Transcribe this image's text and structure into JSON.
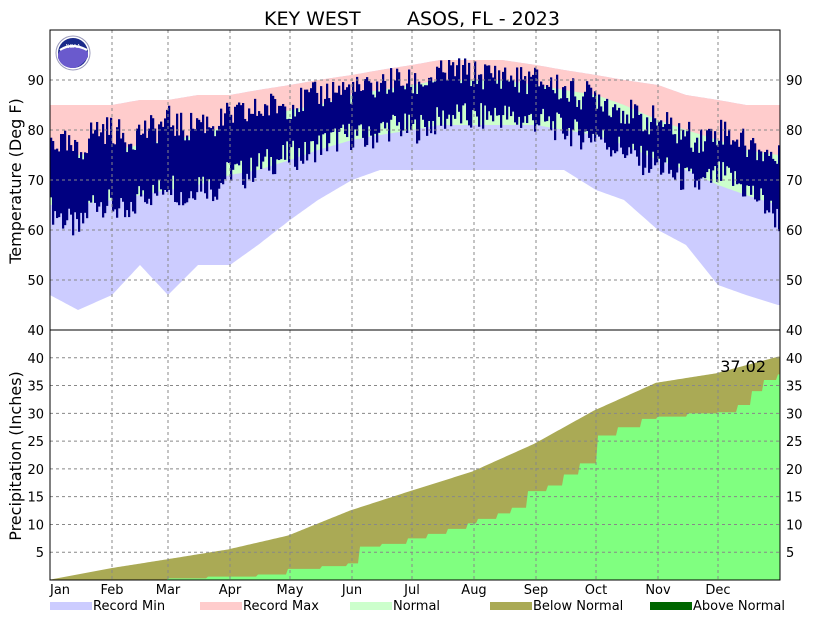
{
  "chart_data": {
    "type": "bar",
    "title_station": "KEY WEST",
    "title_rest": "ASOS, FL - 2023",
    "colors": {
      "record_min": "#ccccff",
      "record_max": "#ffcccc",
      "normal": "#ccffcc",
      "observed": "#000080",
      "below_normal": "#aaaa55",
      "above_normal": "#006600",
      "observed_precip": "#80ff80"
    },
    "months": [
      "Jan",
      "Feb",
      "Mar",
      "Apr",
      "May",
      "Jun",
      "Jul",
      "Aug",
      "Sep",
      "Oct",
      "Nov",
      "Dec"
    ],
    "temperature": {
      "ylabel": "Temperature (Deg F)",
      "ylim": [
        40,
        100
      ],
      "ticks": [
        40,
        50,
        60,
        70,
        80,
        90
      ],
      "record_min_anchors": [
        [
          1,
          47
        ],
        [
          15,
          44
        ],
        [
          32,
          47
        ],
        [
          46,
          53
        ],
        [
          60,
          47
        ],
        [
          75,
          53
        ],
        [
          91,
          53
        ],
        [
          105,
          57
        ],
        [
          121,
          62
        ],
        [
          135,
          66
        ],
        [
          152,
          70
        ],
        [
          166,
          72
        ],
        [
          182,
          72
        ],
        [
          196,
          72
        ],
        [
          213,
          72
        ],
        [
          227,
          72
        ],
        [
          244,
          72
        ],
        [
          258,
          72
        ],
        [
          274,
          68
        ],
        [
          288,
          66
        ],
        [
          305,
          60
        ],
        [
          319,
          57
        ],
        [
          335,
          49
        ],
        [
          349,
          47
        ],
        [
          365,
          45
        ]
      ],
      "record_max_anchors": [
        [
          1,
          85
        ],
        [
          15,
          85
        ],
        [
          32,
          85
        ],
        [
          46,
          86
        ],
        [
          60,
          86
        ],
        [
          75,
          87
        ],
        [
          91,
          87
        ],
        [
          105,
          88
        ],
        [
          121,
          89
        ],
        [
          135,
          90
        ],
        [
          152,
          91
        ],
        [
          166,
          92
        ],
        [
          182,
          93
        ],
        [
          196,
          94
        ],
        [
          213,
          94
        ],
        [
          227,
          94
        ],
        [
          244,
          93
        ],
        [
          258,
          92
        ],
        [
          274,
          91
        ],
        [
          288,
          90
        ],
        [
          305,
          89
        ],
        [
          319,
          87
        ],
        [
          335,
          86
        ],
        [
          349,
          85
        ],
        [
          365,
          85
        ]
      ],
      "normal_low_anchors": [
        [
          1,
          65
        ],
        [
          15,
          65
        ],
        [
          32,
          66
        ],
        [
          46,
          67
        ],
        [
          60,
          68
        ],
        [
          75,
          69
        ],
        [
          91,
          71
        ],
        [
          105,
          72
        ],
        [
          121,
          74
        ],
        [
          135,
          76
        ],
        [
          152,
          78
        ],
        [
          166,
          79
        ],
        [
          182,
          80
        ],
        [
          196,
          81
        ],
        [
          213,
          81
        ],
        [
          227,
          81
        ],
        [
          244,
          81
        ],
        [
          258,
          80
        ],
        [
          274,
          79
        ],
        [
          288,
          77
        ],
        [
          305,
          74
        ],
        [
          319,
          72
        ],
        [
          335,
          69
        ],
        [
          349,
          67
        ],
        [
          365,
          65
        ]
      ],
      "normal_high_anchors": [
        [
          1,
          75
        ],
        [
          15,
          75
        ],
        [
          32,
          76
        ],
        [
          46,
          77
        ],
        [
          60,
          78
        ],
        [
          75,
          79
        ],
        [
          91,
          81
        ],
        [
          105,
          82
        ],
        [
          121,
          84
        ],
        [
          135,
          85
        ],
        [
          152,
          87
        ],
        [
          166,
          88
        ],
        [
          182,
          89
        ],
        [
          196,
          90
        ],
        [
          213,
          90
        ],
        [
          227,
          90
        ],
        [
          244,
          89
        ],
        [
          258,
          88
        ],
        [
          274,
          87
        ],
        [
          288,
          85
        ],
        [
          305,
          82
        ],
        [
          319,
          80
        ],
        [
          335,
          78
        ],
        [
          349,
          76
        ],
        [
          365,
          75
        ]
      ],
      "observed_low_anchors": [
        [
          1,
          64
        ],
        [
          8,
          62
        ],
        [
          15,
          60
        ],
        [
          22,
          66
        ],
        [
          32,
          65
        ],
        [
          40,
          62
        ],
        [
          46,
          68
        ],
        [
          53,
          67
        ],
        [
          60,
          70
        ],
        [
          68,
          66
        ],
        [
          75,
          70
        ],
        [
          83,
          68
        ],
        [
          91,
          72
        ],
        [
          98,
          71
        ],
        [
          105,
          73
        ],
        [
          113,
          74
        ],
        [
          121,
          75
        ],
        [
          128,
          75
        ],
        [
          135,
          77
        ],
        [
          142,
          78
        ],
        [
          152,
          79
        ],
        [
          159,
          78
        ],
        [
          166,
          80
        ],
        [
          173,
          81
        ],
        [
          182,
          80
        ],
        [
          189,
          81
        ],
        [
          196,
          82
        ],
        [
          203,
          83
        ],
        [
          213,
          82
        ],
        [
          220,
          83
        ],
        [
          227,
          83
        ],
        [
          234,
          82
        ],
        [
          244,
          82
        ],
        [
          251,
          81
        ],
        [
          258,
          80
        ],
        [
          265,
          79
        ],
        [
          274,
          79
        ],
        [
          281,
          77
        ],
        [
          288,
          76
        ],
        [
          295,
          74
        ],
        [
          305,
          73
        ],
        [
          312,
          71
        ],
        [
          319,
          70
        ],
        [
          326,
          69
        ],
        [
          335,
          71
        ],
        [
          342,
          70
        ],
        [
          349,
          68
        ],
        [
          356,
          66
        ],
        [
          365,
          62
        ]
      ],
      "observed_high_anchors": [
        [
          1,
          78
        ],
        [
          8,
          77
        ],
        [
          15,
          75
        ],
        [
          22,
          80
        ],
        [
          32,
          80
        ],
        [
          40,
          78
        ],
        [
          46,
          80
        ],
        [
          53,
          80
        ],
        [
          60,
          82
        ],
        [
          68,
          80
        ],
        [
          75,
          82
        ],
        [
          83,
          81
        ],
        [
          91,
          83
        ],
        [
          98,
          83
        ],
        [
          105,
          84
        ],
        [
          113,
          85
        ],
        [
          121,
          85
        ],
        [
          128,
          86
        ],
        [
          135,
          87
        ],
        [
          142,
          88
        ],
        [
          152,
          88
        ],
        [
          159,
          88
        ],
        [
          166,
          89
        ],
        [
          173,
          90
        ],
        [
          182,
          89
        ],
        [
          189,
          90
        ],
        [
          196,
          91
        ],
        [
          203,
          92
        ],
        [
          213,
          91
        ],
        [
          220,
          91
        ],
        [
          227,
          91
        ],
        [
          234,
          90
        ],
        [
          244,
          90
        ],
        [
          251,
          89
        ],
        [
          258,
          88
        ],
        [
          265,
          87
        ],
        [
          274,
          87
        ],
        [
          281,
          85
        ],
        [
          288,
          84
        ],
        [
          295,
          82
        ],
        [
          305,
          82
        ],
        [
          312,
          80
        ],
        [
          319,
          79
        ],
        [
          326,
          78
        ],
        [
          335,
          80
        ],
        [
          342,
          79
        ],
        [
          349,
          77
        ],
        [
          356,
          76
        ],
        [
          365,
          74
        ]
      ]
    },
    "precipitation": {
      "ylabel": "Precipitation (Inches)",
      "ylim": [
        0,
        45
      ],
      "ticks": [
        5,
        10,
        15,
        20,
        25,
        30,
        35,
        40
      ],
      "normal_cumulative_anchors": [
        [
          0,
          0
        ],
        [
          31,
          2.1
        ],
        [
          59,
          3.7
        ],
        [
          90,
          5.5
        ],
        [
          120,
          8.0
        ],
        [
          151,
          12.5
        ],
        [
          181,
          16.0
        ],
        [
          212,
          19.5
        ],
        [
          243,
          24.5
        ],
        [
          273,
          30.5
        ],
        [
          304,
          35.5
        ],
        [
          334,
          37.2
        ],
        [
          365,
          40.2
        ]
      ],
      "observed_cumulative_steps": [
        [
          0,
          0
        ],
        [
          60,
          0.3
        ],
        [
          80,
          0.6
        ],
        [
          105,
          1.0
        ],
        [
          120,
          2.0
        ],
        [
          137,
          2.5
        ],
        [
          150,
          3.0
        ],
        [
          156,
          6.0
        ],
        [
          167,
          6.5
        ],
        [
          175,
          6.5
        ],
        [
          180,
          7.5
        ],
        [
          190,
          8.3
        ],
        [
          200,
          9.2
        ],
        [
          210,
          10.2
        ],
        [
          215,
          11.0
        ],
        [
          225,
          12.0
        ],
        [
          232,
          13.0
        ],
        [
          240,
          16.0
        ],
        [
          250,
          17.0
        ],
        [
          258,
          19.0
        ],
        [
          266,
          21.0
        ],
        [
          275,
          26.0
        ],
        [
          285,
          27.5
        ],
        [
          297,
          29.0
        ],
        [
          305,
          29.4
        ],
        [
          320,
          30.0
        ],
        [
          335,
          30.2
        ],
        [
          345,
          31.5
        ],
        [
          352,
          34.0
        ],
        [
          358,
          36.0
        ],
        [
          365,
          37.02
        ]
      ],
      "total_label": "37.02"
    },
    "legend": [
      "Record Min",
      "Record Max",
      "Normal",
      "Below Normal",
      "Above Normal"
    ]
  }
}
